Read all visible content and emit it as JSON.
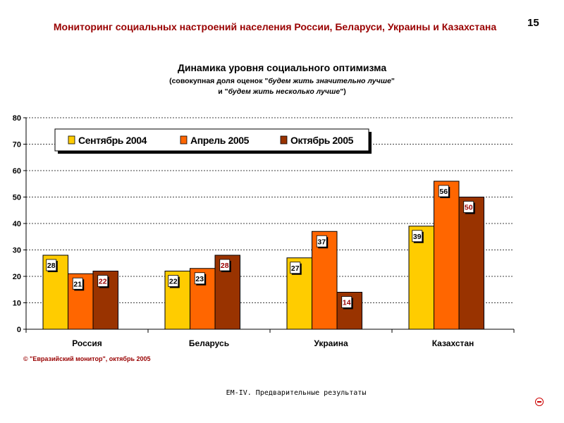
{
  "header": {
    "title": "Мониторинг социальных настроений населения России, Беларуси, Украины и Казахстана",
    "page_number": "15"
  },
  "footer": {
    "copyright": "© \"Евразийский монитор\", октябрь 2005",
    "note": "ЕМ-IV. Предварительные результаты"
  },
  "colors": {
    "series": [
      "#FFCC00",
      "#FF6600",
      "#993300"
    ],
    "title_red": "#990000"
  },
  "chart_data": {
    "type": "bar",
    "title": "Динамика уровня социального оптимизма",
    "subtitle_prefix": "(совокупная доля оценок \"",
    "subtitle_italic_1": "будем жить значительно лучше",
    "subtitle_join": "\"",
    "subtitle_line2_prefix": "и \"",
    "subtitle_italic_2": "будем жить несколько лучше",
    "subtitle_suffix": "\")",
    "categories": [
      "Россия",
      "Беларусь",
      "Украина",
      "Казахстан"
    ],
    "series": [
      {
        "name": "Сентябрь 2004",
        "values": [
          28,
          22,
          27,
          39
        ],
        "labels": [
          "28",
          "22",
          "27",
          "39"
        ]
      },
      {
        "name": "Апрель 2005",
        "values": [
          21,
          23,
          37,
          56
        ],
        "labels": [
          "21",
          "23",
          "37",
          "56"
        ]
      },
      {
        "name": "Октябрь 2005",
        "values": [
          22,
          28,
          14,
          50
        ],
        "labels": [
          "22",
          "28",
          "14",
          "50"
        ]
      }
    ],
    "y_ticks": [
      "0",
      "10",
      "20",
      "30",
      "40",
      "50",
      "60",
      "70",
      "80"
    ],
    "ylim": [
      0,
      80
    ],
    "xlabel": "",
    "ylabel": "",
    "grid": true,
    "legend_position": "top-left"
  }
}
